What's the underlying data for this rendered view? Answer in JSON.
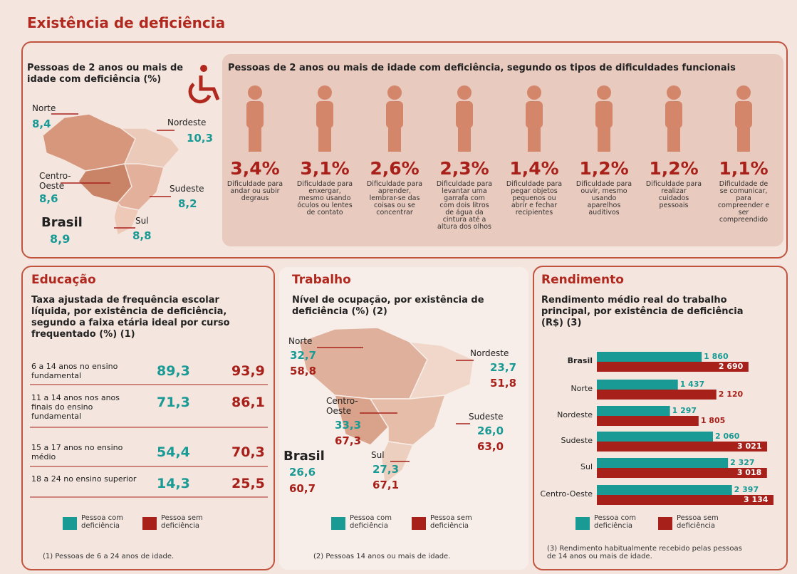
{
  "title": "Existência de deficiência",
  "regional": {
    "title": "Pessoas de 2 anos ou mais de idade com deficiência (%)",
    "regions": [
      {
        "name": "Norte",
        "value": "8,4"
      },
      {
        "name": "Nordeste",
        "value": "10,3"
      },
      {
        "name": "Centro-Oeste",
        "value": "8,6"
      },
      {
        "name": "Sudeste",
        "value": "8,2"
      },
      {
        "name": "Sul",
        "value": "8,8"
      }
    ],
    "brasil": {
      "name": "Brasil",
      "value": "8,9"
    }
  },
  "tipos": {
    "title": "Pessoas de 2 anos ou mais de idade com deficiência, segundo os tipos de dificuldades funcionais",
    "items": [
      {
        "value": "3,4%",
        "label": "Dificuldade para andar ou subir degraus"
      },
      {
        "value": "3,1%",
        "label": "Dificuldade para enxergar, mesmo usando óculos ou lentes de contato"
      },
      {
        "value": "2,6%",
        "label": "Dificuldade para aprender, lembrar-se das coisas ou se concentrar"
      },
      {
        "value": "2,3%",
        "label": "Dificuldade para levantar uma garrafa com com dois litros de água da cintura até a altura dos olhos"
      },
      {
        "value": "1,4%",
        "label": "Dificuldade para pegar objetos pequenos ou abrir e fechar recipientes"
      },
      {
        "value": "1,2%",
        "label": "Dificuldade para ouvir, mesmo usando aparelhos auditivos"
      },
      {
        "value": "1,2%",
        "label": "Dificuldade para realizar cuidados pessoais"
      },
      {
        "value": "1,1%",
        "label": "Dificuldade de se comunicar, para compreender e ser compreendido"
      }
    ]
  },
  "educacao": {
    "title": "Educação",
    "subtitle": "Taxa ajustada de frequência escolar líquida, por existência de deficiência, segundo a faixa etária ideal por curso frequentado (%) (1)",
    "rows": [
      {
        "label": "6 a 14 anos no ensino fundamental",
        "com": "89,3",
        "sem": "93,9"
      },
      {
        "label": "11 a 14 anos nos anos finais do ensino fundamental",
        "com": "71,3",
        "sem": "86,1"
      },
      {
        "label": "15 a 17 anos no ensino médio",
        "com": "54,4",
        "sem": "70,3"
      },
      {
        "label": "18 a 24 no ensino superior",
        "com": "14,3",
        "sem": "25,5"
      }
    ],
    "legend": [
      "Pessoa com deficiência",
      "Pessoa sem deficiência"
    ],
    "note": "(1) Pessoas de 6 a 24 anos de idade."
  },
  "trabalho": {
    "title": "Trabalho",
    "subtitle": "Nível de ocupação, por existência de deficiência (%) (2)",
    "regions": [
      {
        "name": "Norte",
        "com": "32,7",
        "sem": "58,8"
      },
      {
        "name": "Nordeste",
        "com": "23,7",
        "sem": "51,8"
      },
      {
        "name": "Centro-Oeste",
        "com": "33,3",
        "sem": "67,3"
      },
      {
        "name": "Sudeste",
        "com": "26,0",
        "sem": "63,0"
      },
      {
        "name": "Sul",
        "com": "27,3",
        "sem": "67,1"
      }
    ],
    "brasil": {
      "name": "Brasil",
      "com": "26,6",
      "sem": "60,7"
    },
    "legend": [
      "Pessoa com deficiência",
      "Pessoa sem deficiência"
    ],
    "note": "(2) Pessoas 14 anos ou mais de idade."
  },
  "rendimento": {
    "title": "Rendimento",
    "subtitle": "Rendimento médio real do trabalho principal, por existência de deficiência (R$) (3)",
    "chart_data": {
      "type": "bar",
      "categories": [
        "Brasil",
        "Norte",
        "Nordeste",
        "Sudeste",
        "Sul",
        "Centro-Oeste"
      ],
      "series": [
        {
          "name": "Pessoa com deficiência",
          "color": "#1a9a95",
          "values": [
            1860,
            1437,
            1297,
            2060,
            2327,
            2397
          ],
          "value_labels": [
            "1 860",
            "1 437",
            "1 297",
            "2 060",
            "2 327",
            "2 397"
          ]
        },
        {
          "name": "Pessoa sem deficiência",
          "color": "#a8201a",
          "values": [
            2690,
            2120,
            1805,
            3021,
            3018,
            3134
          ],
          "value_labels": [
            "2 690",
            "2 120",
            "1 805",
            "3 021",
            "3 018",
            "3 134"
          ]
        }
      ]
    },
    "note": "(3) Rendimento habitualmente recebido pelas pessoas de 14 anos ou mais de idade."
  }
}
